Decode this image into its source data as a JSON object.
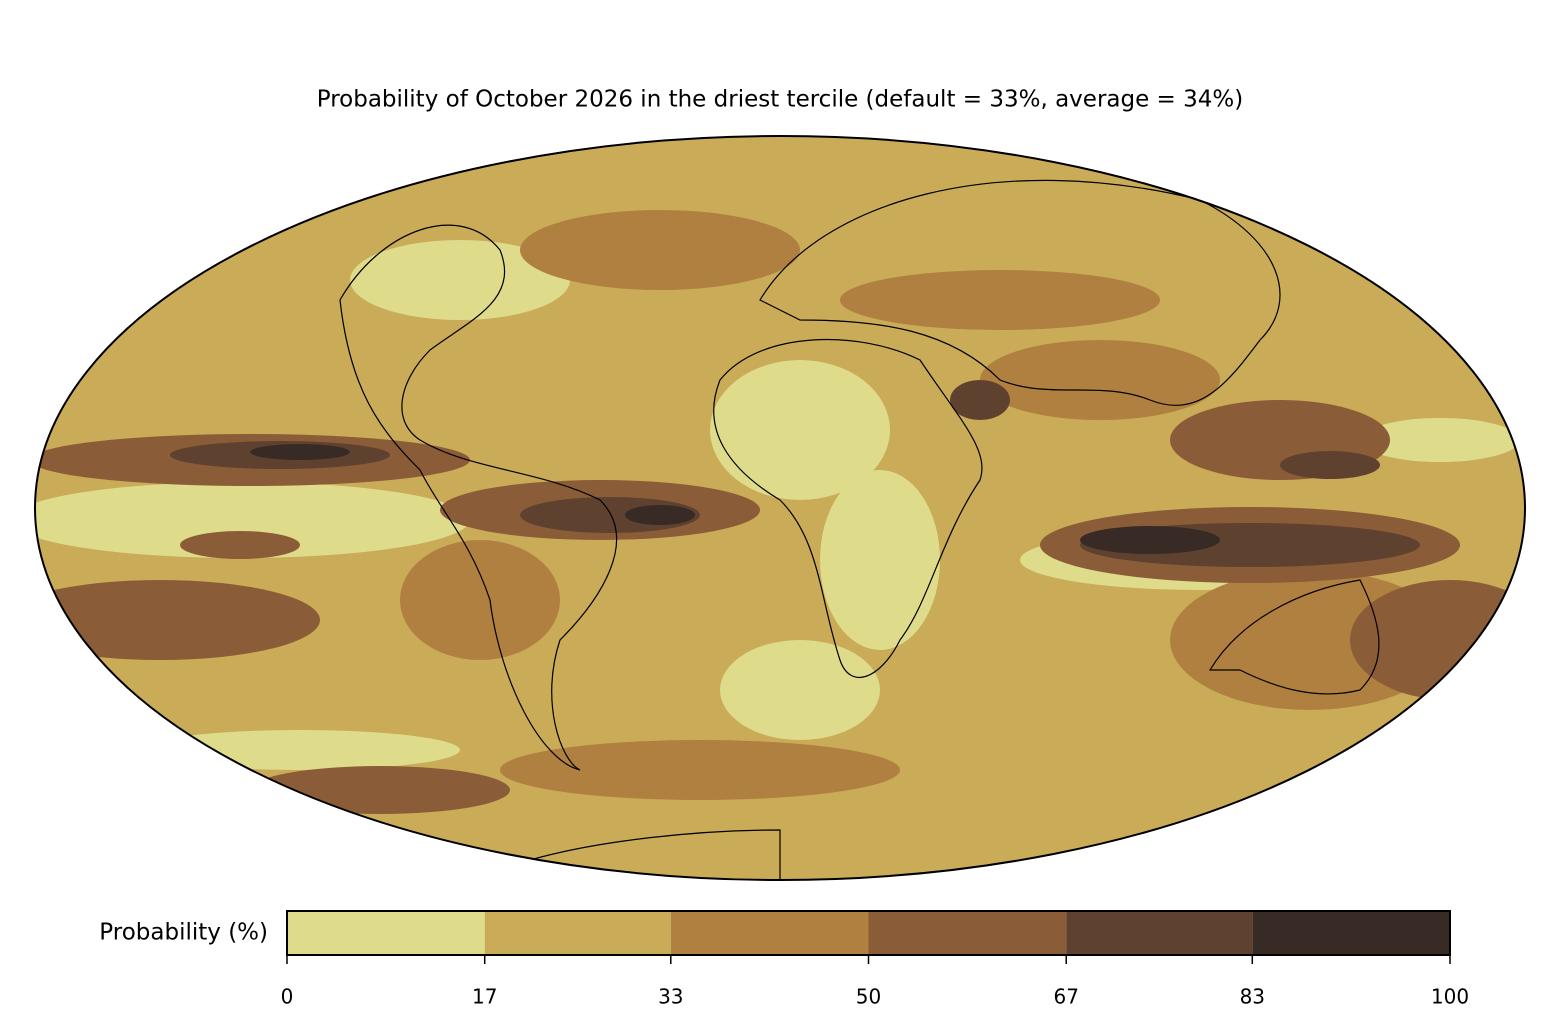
{
  "title": "Probability of October 2026 in the driest tercile (default = 33%, average = 34%)",
  "colorbar": {
    "label": "Probability (%)",
    "ticks": [
      0,
      17,
      33,
      50,
      67,
      83,
      100
    ],
    "colors": [
      "#dedb8b",
      "#c9ab58",
      "#b08040",
      "#8b5c38",
      "#5f4130",
      "#382a25"
    ]
  }
}
